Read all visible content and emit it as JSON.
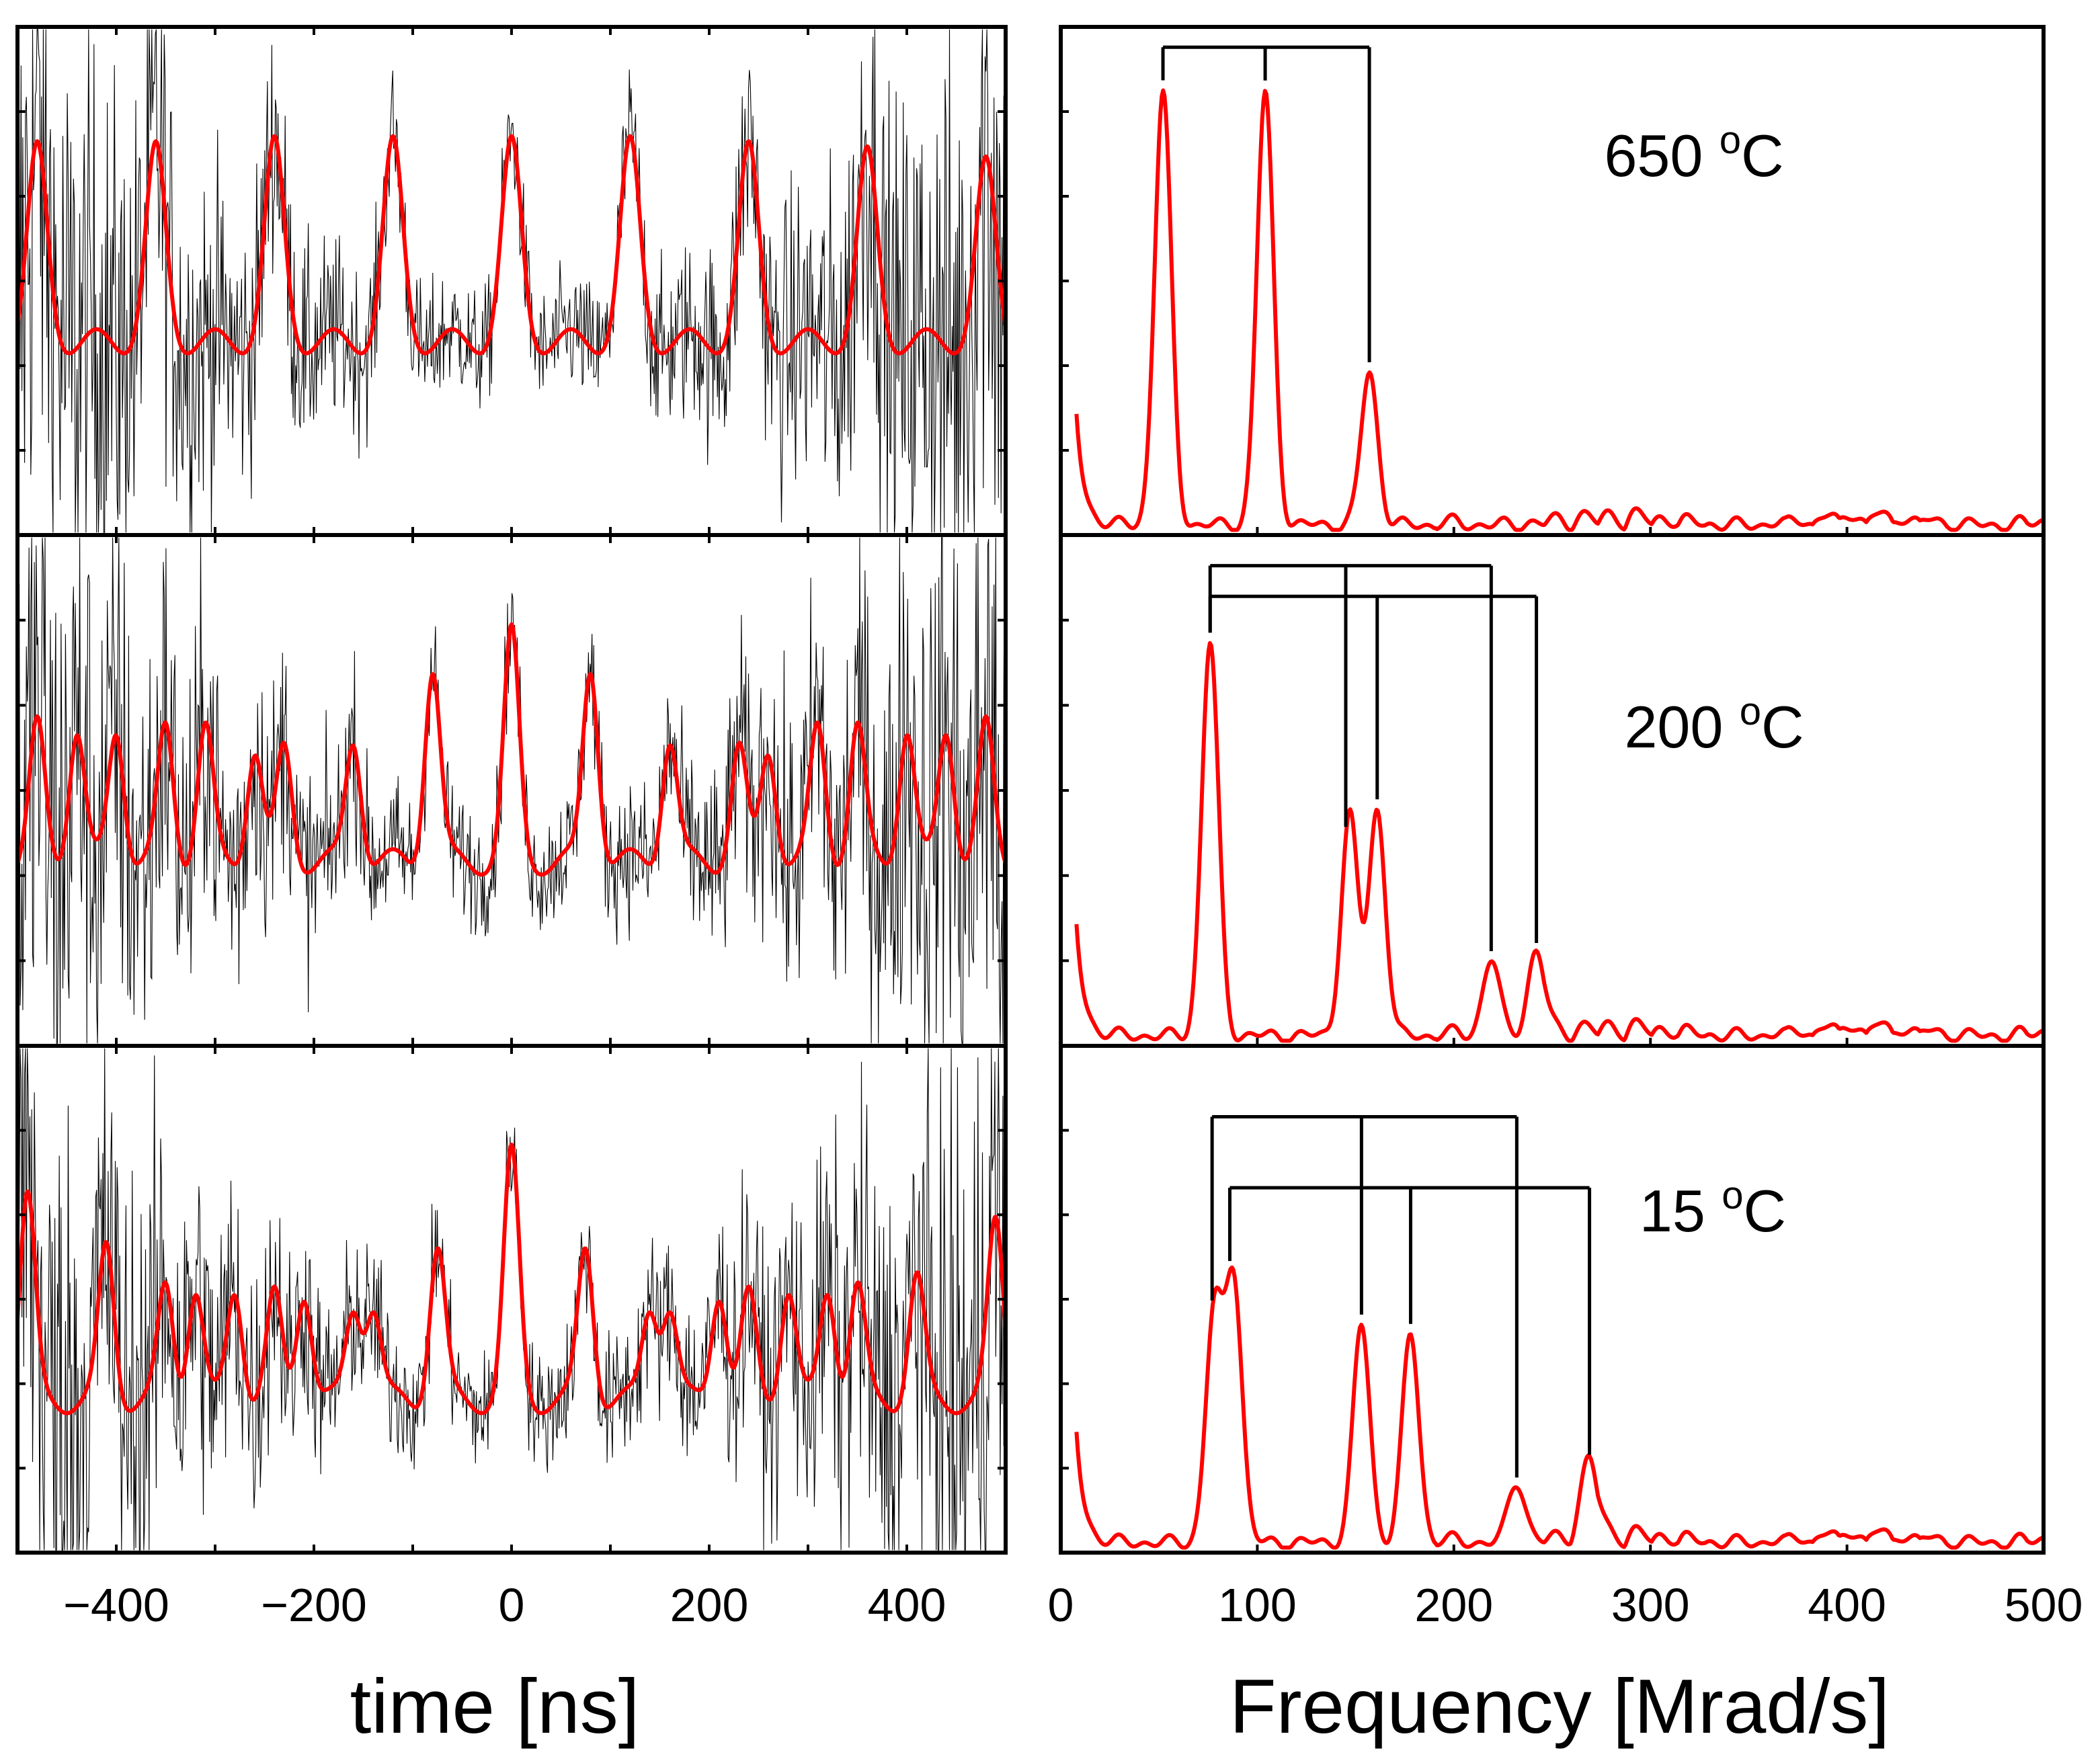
{
  "chart_data": [
    {
      "type": "line",
      "panel": "time-domain",
      "xlabel": "time [ns]",
      "xlim": [
        -500,
        500
      ],
      "xticks": [
        -400,
        -200,
        0,
        200,
        400
      ],
      "tick_labels": [
        "−400",
        "−200",
        "0",
        "200",
        "400"
      ],
      "ylabel": "",
      "subplots": [
        {
          "temperature": "650 °C",
          "series": [
            {
              "name": "measured",
              "color": "#000000",
              "style": "noisy"
            },
            {
              "name": "fit",
              "color": "#ff0000",
              "peak_times_ns": [
                -480,
                -360,
                -240,
                -120,
                0,
                120,
                240,
                360,
                480
              ],
              "peak_values": [
                0.75,
                0.75,
                0.76,
                0.76,
                0.76,
                0.76,
                0.75,
                0.74,
                0.72
              ],
              "baseline": 0.38
            }
          ]
        },
        {
          "temperature": "200 °C",
          "series": [
            {
              "name": "measured",
              "color": "#000000",
              "style": "noisy"
            },
            {
              "name": "fit",
              "color": "#ff0000",
              "peak_times_ns": [
                -480,
                -440,
                -400,
                -350,
                -310,
                -260,
                -230,
                -160,
                -80,
                0,
                80,
                160,
                230,
                260,
                310,
                350,
                400,
                440,
                480
              ],
              "peak_values": [
                0.62,
                0.62,
                0.62,
                0.62,
                0.62,
                0.58,
                0.58,
                0.6,
                0.74,
                0.8,
                0.74,
                0.6,
                0.58,
                0.58,
                0.62,
                0.62,
                0.62,
                0.62,
                0.62
              ],
              "baseline": 0.36
            }
          ]
        },
        {
          "temperature": "15 °C",
          "series": [
            {
              "name": "measured",
              "color": "#000000",
              "style": "noisy"
            },
            {
              "name": "fit",
              "color": "#ff0000",
              "peak_times_ns": [
                -490,
                -410,
                -350,
                -320,
                -280,
                -240,
                -210,
                -160,
                -140,
                -75,
                0,
                75,
                140,
                160,
                210,
                240,
                280,
                320,
                350,
                410,
                490
              ],
              "peak_values": [
                0.7,
                0.6,
                0.52,
                0.52,
                0.52,
                0.5,
                0.52,
                0.48,
                0.48,
                0.6,
                0.78,
                0.6,
                0.48,
                0.48,
                0.52,
                0.5,
                0.52,
                0.52,
                0.52,
                0.54,
                0.65
              ],
              "baseline": 0.3
            }
          ]
        }
      ]
    },
    {
      "type": "line",
      "panel": "frequency-domain",
      "xlabel": "Frequency [Mrad/s]",
      "xlim": [
        0,
        500
      ],
      "xticks": [
        0,
        100,
        200,
        300,
        400,
        500
      ],
      "tick_labels": [
        "0",
        "100",
        "200",
        "300",
        "400",
        "500"
      ],
      "ylabel": "",
      "subplots": [
        {
          "temperature": "650 °C",
          "label_parts": {
            "number": "650 ",
            "degree": "o",
            "unit": "C"
          },
          "series": [
            {
              "name": "spectrum",
              "color": "#ff0000",
              "peaks": [
                {
                  "freq": 52,
                  "height": 0.85
                },
                {
                  "freq": 104,
                  "height": 0.85
                },
                {
                  "freq": 157,
                  "height": 0.3
                }
              ]
            }
          ],
          "brackets": [
            {
              "freqs": [
                52,
                104,
                157
              ],
              "bar_level": 0.96
            }
          ]
        },
        {
          "temperature": "200 °C",
          "label_parts": {
            "number": "200 ",
            "degree": "o",
            "unit": "C"
          },
          "series": [
            {
              "name": "spectrum",
              "color": "#ff0000",
              "peaks": [
                {
                  "freq": 76,
                  "height": 0.77
                },
                {
                  "freq": 147,
                  "height": 0.43
                },
                {
                  "freq": 161,
                  "height": 0.44
                },
                {
                  "freq": 219,
                  "height": 0.15
                },
                {
                  "freq": 242,
                  "height": 0.16
                }
              ]
            }
          ],
          "brackets": [
            {
              "freqs": [
                76,
                145,
                219
              ],
              "bar_level": 0.94
            },
            {
              "freqs": [
                76,
                161,
                242
              ],
              "bar_level": 0.88
            }
          ]
        },
        {
          "temperature": "15 °C",
          "label_parts": {
            "number": "15 ",
            "degree": "o",
            "unit": "C"
          },
          "series": [
            {
              "name": "spectrum",
              "color": "#ff0000",
              "peaks": [
                {
                  "freq": 78,
                  "height": 0.45
                },
                {
                  "freq": 88,
                  "height": 0.52
                },
                {
                  "freq": 153,
                  "height": 0.43
                },
                {
                  "freq": 178,
                  "height": 0.41
                },
                {
                  "freq": 232,
                  "height": 0.12
                },
                {
                  "freq": 269,
                  "height": 0.15
                }
              ]
            }
          ],
          "brackets": [
            {
              "freqs": [
                77,
                153,
                232
              ],
              "bar_level": 0.86
            },
            {
              "freqs": [
                86,
                178,
                269
              ],
              "bar_level": 0.72
            }
          ]
        }
      ]
    }
  ]
}
